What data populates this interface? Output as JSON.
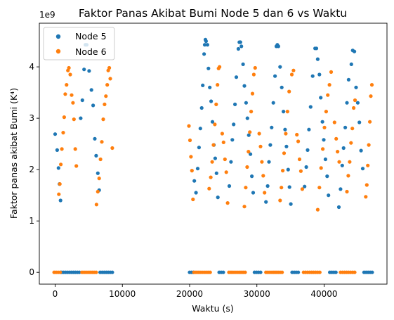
{
  "chart_data": {
    "type": "scatter",
    "title": "Faktor Panas Akibat Bumi Node 5 dan 6 vs Waktu",
    "xlabel": "Waktu (s)",
    "ylabel": "Faktor panas akibat Bumi (K⁴)",
    "offset_text": "1e9",
    "xlim": [
      -2350,
      49350
    ],
    "ylim": [
      -0.23,
      4.85
    ],
    "xticks": [
      0,
      10000,
      20000,
      30000,
      40000
    ],
    "xtick_labels": [
      "0",
      "10000",
      "20000",
      "30000",
      "40000"
    ],
    "yticks": [
      0,
      1,
      2,
      3,
      4
    ],
    "ytick_labels": [
      "0",
      "1",
      "2",
      "3",
      "4"
    ],
    "legend_position": "upper-left",
    "grid": false,
    "colors": {
      "Node 5": "#1f77b4",
      "Node 6": "#ff7f0e"
    },
    "series": [
      {
        "name": "Node 5",
        "points": [
          [
            0,
            2.69
          ],
          [
            300,
            2.38
          ],
          [
            500,
            2.03
          ],
          [
            650,
            1.72
          ],
          [
            800,
            1.4
          ],
          [
            900,
            0
          ],
          [
            1200,
            0
          ],
          [
            1500,
            0
          ],
          [
            1800,
            0
          ],
          [
            2100,
            0
          ],
          [
            2400,
            0
          ],
          [
            2700,
            0
          ],
          [
            3000,
            0
          ],
          [
            3300,
            0
          ],
          [
            3600,
            0
          ],
          [
            3800,
            3.0
          ],
          [
            4050,
            3.35
          ],
          [
            4300,
            3.95
          ],
          [
            4500,
            4.43
          ],
          [
            4700,
            4.43
          ],
          [
            5050,
            3.92
          ],
          [
            5400,
            3.55
          ],
          [
            5650,
            3.25
          ],
          [
            5900,
            2.6
          ],
          [
            6100,
            2.27
          ],
          [
            6350,
            1.93
          ],
          [
            6550,
            1.6
          ],
          [
            6700,
            0
          ],
          [
            7000,
            0
          ],
          [
            7300,
            0
          ],
          [
            7600,
            0
          ],
          [
            7900,
            0
          ],
          [
            8200,
            0
          ],
          [
            8500,
            0
          ],
          [
            20000,
            0
          ],
          [
            20300,
            0
          ],
          [
            20600,
            0
          ],
          [
            20700,
            1.78
          ],
          [
            20950,
            1.55
          ],
          [
            21200,
            2.02
          ],
          [
            21400,
            2.43
          ],
          [
            21600,
            2.8
          ],
          [
            21800,
            3.2
          ],
          [
            21950,
            3.64
          ],
          [
            22150,
            4.25
          ],
          [
            22250,
            4.43
          ],
          [
            22350,
            4.53
          ],
          [
            22450,
            4.5
          ],
          [
            22650,
            4.43
          ],
          [
            22800,
            3.97
          ],
          [
            23000,
            3.6
          ],
          [
            23200,
            3.33
          ],
          [
            23400,
            2.93
          ],
          [
            23600,
            2.48
          ],
          [
            23800,
            2.22
          ],
          [
            24000,
            1.93
          ],
          [
            24200,
            1.46
          ],
          [
            24400,
            0
          ],
          [
            24700,
            0
          ],
          [
            25000,
            0
          ],
          [
            25900,
            1.68
          ],
          [
            26150,
            2.15
          ],
          [
            26350,
            2.58
          ],
          [
            26550,
            2.88
          ],
          [
            26750,
            3.27
          ],
          [
            26950,
            3.8
          ],
          [
            27250,
            4.35
          ],
          [
            27400,
            4.48
          ],
          [
            27550,
            4.48
          ],
          [
            27700,
            4.4
          ],
          [
            27950,
            4.05
          ],
          [
            28150,
            3.63
          ],
          [
            28400,
            3.3
          ],
          [
            28600,
            3.0
          ],
          [
            28800,
            2.67
          ],
          [
            29050,
            2.3
          ],
          [
            29250,
            1.87
          ],
          [
            29450,
            1.55
          ],
          [
            29650,
            0
          ],
          [
            29950,
            0
          ],
          [
            30250,
            0
          ],
          [
            30550,
            0
          ],
          [
            31350,
            1.37
          ],
          [
            31600,
            1.68
          ],
          [
            31800,
            2.15
          ],
          [
            32000,
            2.48
          ],
          [
            32200,
            2.82
          ],
          [
            32450,
            3.3
          ],
          [
            32700,
            3.82
          ],
          [
            32900,
            4.4
          ],
          [
            33050,
            4.43
          ],
          [
            33200,
            4.4
          ],
          [
            33450,
            4.0
          ],
          [
            33700,
            3.6
          ],
          [
            33950,
            3.13
          ],
          [
            34200,
            2.78
          ],
          [
            34400,
            2.45
          ],
          [
            34650,
            2.0
          ],
          [
            34850,
            1.66
          ],
          [
            35050,
            1.33
          ],
          [
            35250,
            0
          ],
          [
            35550,
            0
          ],
          [
            35850,
            0
          ],
          [
            36150,
            0
          ],
          [
            37100,
            1.67
          ],
          [
            37350,
            2.05
          ],
          [
            37550,
            2.38
          ],
          [
            37750,
            2.78
          ],
          [
            38000,
            3.22
          ],
          [
            38300,
            3.82
          ],
          [
            38650,
            4.36
          ],
          [
            38850,
            4.36
          ],
          [
            39050,
            4.15
          ],
          [
            39300,
            3.85
          ],
          [
            39500,
            3.4
          ],
          [
            39750,
            2.93
          ],
          [
            39950,
            2.58
          ],
          [
            40200,
            2.2
          ],
          [
            40450,
            1.87
          ],
          [
            40650,
            1.5
          ],
          [
            40850,
            0
          ],
          [
            41150,
            0
          ],
          [
            41450,
            0
          ],
          [
            41750,
            0
          ],
          [
            42200,
            1.27
          ],
          [
            42450,
            1.62
          ],
          [
            42700,
            2.08
          ],
          [
            42900,
            2.42
          ],
          [
            43150,
            2.82
          ],
          [
            43400,
            3.3
          ],
          [
            43650,
            3.75
          ],
          [
            44050,
            4.05
          ],
          [
            44250,
            4.32
          ],
          [
            44500,
            4.3
          ],
          [
            44750,
            3.6
          ],
          [
            45000,
            3.3
          ],
          [
            45250,
            2.92
          ],
          [
            45500,
            2.37
          ],
          [
            45750,
            2.02
          ],
          [
            45950,
            0
          ],
          [
            46250,
            0
          ],
          [
            46550,
            0
          ],
          [
            46850,
            0
          ],
          [
            47150,
            0
          ]
        ]
      },
      {
        "name": "Node 6",
        "points": [
          [
            -150,
            0
          ],
          [
            150,
            0
          ],
          [
            450,
            0
          ],
          [
            750,
            0
          ],
          [
            550,
            1.52
          ],
          [
            700,
            1.72
          ],
          [
            850,
            2.1
          ],
          [
            1000,
            2.4
          ],
          [
            1200,
            2.72
          ],
          [
            1350,
            3.02
          ],
          [
            1500,
            3.47
          ],
          [
            1700,
            3.65
          ],
          [
            1900,
            3.93
          ],
          [
            2050,
            3.98
          ],
          [
            2250,
            3.85
          ],
          [
            2450,
            3.45
          ],
          [
            2650,
            3.3
          ],
          [
            2800,
            2.98
          ],
          [
            3000,
            2.4
          ],
          [
            3150,
            2.07
          ],
          [
            4000,
            0
          ],
          [
            4300,
            0
          ],
          [
            4600,
            0
          ],
          [
            4900,
            0
          ],
          [
            5200,
            0
          ],
          [
            5500,
            0
          ],
          [
            5800,
            0
          ],
          [
            6100,
            0
          ],
          [
            6150,
            1.32
          ],
          [
            6350,
            1.57
          ],
          [
            6550,
            1.83
          ],
          [
            6750,
            2.2
          ],
          [
            6950,
            2.54
          ],
          [
            7150,
            2.98
          ],
          [
            7350,
            3.27
          ],
          [
            7550,
            3.43
          ],
          [
            7750,
            3.65
          ],
          [
            7900,
            3.93
          ],
          [
            8050,
            3.98
          ],
          [
            8200,
            3.77
          ],
          [
            8500,
            2.42
          ],
          [
            19900,
            2.85
          ],
          [
            20050,
            2.57
          ],
          [
            20200,
            2.25
          ],
          [
            20350,
            1.98
          ],
          [
            20500,
            1.42
          ],
          [
            20650,
            0
          ],
          [
            20950,
            0
          ],
          [
            21250,
            0
          ],
          [
            21550,
            0
          ],
          [
            21850,
            0
          ],
          [
            22150,
            0
          ],
          [
            22450,
            0
          ],
          [
            22750,
            0
          ],
          [
            23050,
            0
          ],
          [
            22900,
            1.63
          ],
          [
            23150,
            1.85
          ],
          [
            23350,
            2.15
          ],
          [
            23550,
            2.48
          ],
          [
            23750,
            2.88
          ],
          [
            23950,
            3.27
          ],
          [
            24150,
            3.65
          ],
          [
            24300,
            3.97
          ],
          [
            24450,
            4.0
          ],
          [
            24850,
            2.7
          ],
          [
            25050,
            2.53
          ],
          [
            25250,
            2.2
          ],
          [
            25450,
            1.95
          ],
          [
            25650,
            1.35
          ],
          [
            25850,
            0
          ],
          [
            26150,
            0
          ],
          [
            26450,
            0
          ],
          [
            26750,
            0
          ],
          [
            27050,
            0
          ],
          [
            27350,
            0
          ],
          [
            27650,
            0
          ],
          [
            27950,
            0
          ],
          [
            28250,
            0
          ],
          [
            28150,
            1.28
          ],
          [
            28350,
            1.65
          ],
          [
            28550,
            2.05
          ],
          [
            28750,
            2.35
          ],
          [
            28950,
            2.73
          ],
          [
            29150,
            3.13
          ],
          [
            29350,
            3.48
          ],
          [
            29550,
            3.85
          ],
          [
            29750,
            3.98
          ],
          [
            30350,
            2.7
          ],
          [
            30550,
            2.45
          ],
          [
            30750,
            2.15
          ],
          [
            30950,
            1.88
          ],
          [
            31150,
            1.55
          ],
          [
            31350,
            0
          ],
          [
            31650,
            0
          ],
          [
            31950,
            0
          ],
          [
            32250,
            0
          ],
          [
            32550,
            0
          ],
          [
            32850,
            0
          ],
          [
            33150,
            0
          ],
          [
            33450,
            0
          ],
          [
            33750,
            0
          ],
          [
            33450,
            1.4
          ],
          [
            33650,
            1.65
          ],
          [
            33850,
            1.98
          ],
          [
            34050,
            2.32
          ],
          [
            34300,
            2.7
          ],
          [
            34550,
            3.13
          ],
          [
            34800,
            3.52
          ],
          [
            35200,
            3.85
          ],
          [
            35450,
            3.93
          ],
          [
            35950,
            2.68
          ],
          [
            36150,
            2.55
          ],
          [
            36350,
            2.2
          ],
          [
            36550,
            1.97
          ],
          [
            36750,
            1.62
          ],
          [
            36950,
            0
          ],
          [
            37250,
            0
          ],
          [
            37550,
            0
          ],
          [
            37850,
            0
          ],
          [
            38150,
            0
          ],
          [
            38450,
            0
          ],
          [
            38750,
            0
          ],
          [
            39050,
            0
          ],
          [
            39350,
            0
          ],
          [
            39050,
            1.22
          ],
          [
            39300,
            1.65
          ],
          [
            39550,
            2.03
          ],
          [
            39800,
            2.4
          ],
          [
            40050,
            2.82
          ],
          [
            40300,
            3.13
          ],
          [
            40550,
            3.45
          ],
          [
            40800,
            3.65
          ],
          [
            41050,
            3.9
          ],
          [
            41550,
            2.92
          ],
          [
            41800,
            2.6
          ],
          [
            42000,
            2.35
          ],
          [
            42250,
            2.15
          ],
          [
            42450,
            0
          ],
          [
            42750,
            0
          ],
          [
            43050,
            0
          ],
          [
            43350,
            0
          ],
          [
            43650,
            0
          ],
          [
            43950,
            0
          ],
          [
            44250,
            0
          ],
          [
            44550,
            0
          ],
          [
            43400,
            1.57
          ],
          [
            43600,
            1.88
          ],
          [
            43800,
            2.15
          ],
          [
            44000,
            2.52
          ],
          [
            44200,
            2.8
          ],
          [
            44400,
            3.2
          ],
          [
            44600,
            3.35
          ],
          [
            46200,
            1.47
          ],
          [
            46350,
            1.7
          ],
          [
            46500,
            2.08
          ],
          [
            46650,
            2.48
          ],
          [
            46800,
            2.93
          ],
          [
            46950,
            3.43
          ],
          [
            47100,
            3.65
          ]
        ]
      }
    ]
  }
}
